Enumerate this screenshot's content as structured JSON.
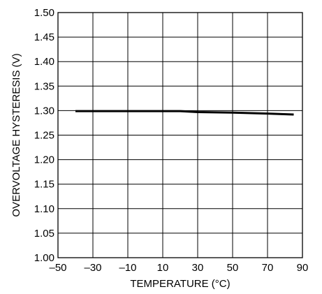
{
  "chart_data": {
    "type": "line",
    "xlabel": "TEMPERATURE (°C)",
    "ylabel": "OVERVOLTAGE HYSTERESIS (V)",
    "xlim": [
      -50,
      90
    ],
    "ylim": [
      1.0,
      1.5
    ],
    "x_ticks": [
      "–50",
      "–30",
      "–10",
      "10",
      "30",
      "50",
      "70",
      "90"
    ],
    "y_ticks": [
      "1.00",
      "1.05",
      "1.10",
      "1.15",
      "1.20",
      "1.25",
      "1.30",
      "1.35",
      "1.40",
      "1.45",
      "1.50"
    ],
    "grid": true,
    "series": [
      {
        "x": [
          -40,
          -30,
          -10,
          10,
          20,
          30,
          50,
          70,
          85
        ],
        "y": [
          1.299,
          1.299,
          1.299,
          1.299,
          1.299,
          1.297,
          1.296,
          1.294,
          1.292
        ]
      }
    ]
  }
}
